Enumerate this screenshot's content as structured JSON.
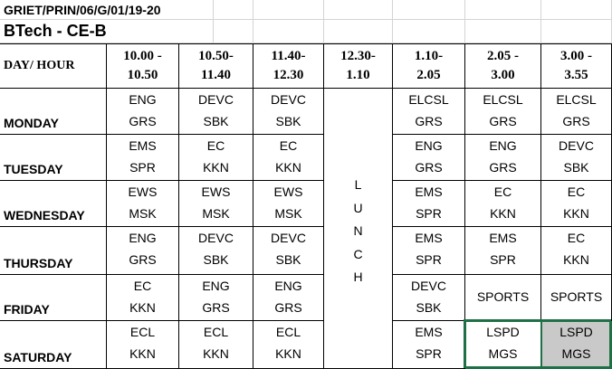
{
  "sheet": {
    "code": "GRIET/PRIN/06/G/01/19-20",
    "class_title": "BTech -  CE-B",
    "header_day": "DAY/ HOUR",
    "periods": [
      {
        "l1": "10.00 -",
        "l2": "10.50"
      },
      {
        "l1": "10.50-",
        "l2": "11.40"
      },
      {
        "l1": "11.40-",
        "l2": "12.30"
      },
      {
        "l1": "12.30-",
        "l2": "1.10"
      },
      {
        "l1": "1.10-",
        "l2": "2.05"
      },
      {
        "l1": "2.05  -",
        "l2": "3.00"
      },
      {
        "l1": "3.00  -",
        "l2": "3.55"
      }
    ],
    "lunch": [
      "L",
      "U",
      "N",
      "C",
      "H"
    ],
    "days": [
      {
        "name": "MONDAY",
        "slots": [
          {
            "a": "ENG",
            "b": "GRS"
          },
          {
            "a": "DEVC",
            "b": "SBK"
          },
          {
            "a": "DEVC",
            "b": "SBK"
          },
          {
            "a": "ELCSL",
            "b": "GRS"
          },
          {
            "a": "ELCSL",
            "b": "GRS"
          },
          {
            "a": "ELCSL",
            "b": "GRS"
          }
        ]
      },
      {
        "name": "TUESDAY",
        "slots": [
          {
            "a": "EMS",
            "b": "SPR"
          },
          {
            "a": "EC",
            "b": "KKN"
          },
          {
            "a": "EC",
            "b": "KKN"
          },
          {
            "a": "ENG",
            "b": "GRS"
          },
          {
            "a": "ENG",
            "b": "GRS"
          },
          {
            "a": "DEVC",
            "b": "SBK"
          }
        ]
      },
      {
        "name": "WEDNESDAY",
        "slots": [
          {
            "a": "EWS",
            "b": "MSK"
          },
          {
            "a": "EWS",
            "b": "MSK"
          },
          {
            "a": "EWS",
            "b": "MSK"
          },
          {
            "a": "EMS",
            "b": "SPR"
          },
          {
            "a": "EC",
            "b": "KKN"
          },
          {
            "a": "EC",
            "b": "KKN"
          }
        ]
      },
      {
        "name": "THURSDAY",
        "slots": [
          {
            "a": "ENG",
            "b": "GRS"
          },
          {
            "a": "DEVC",
            "b": "SBK"
          },
          {
            "a": "DEVC",
            "b": "SBK"
          },
          {
            "a": "EMS",
            "b": "SPR"
          },
          {
            "a": "EMS",
            "b": "SPR"
          },
          {
            "a": "EC",
            "b": "KKN"
          }
        ]
      },
      {
        "name": "FRIDAY",
        "slots": [
          {
            "a": "EC",
            "b": "KKN"
          },
          {
            "a": "ENG",
            "b": "GRS"
          },
          {
            "a": "ENG",
            "b": "GRS"
          },
          {
            "a": "DEVC",
            "b": "SBK"
          },
          {
            "single": "SPORTS"
          },
          {
            "single": "SPORTS"
          }
        ]
      },
      {
        "name": "SATURDAY",
        "slots": [
          {
            "a": "ECL",
            "b": "KKN"
          },
          {
            "a": "ECL",
            "b": "KKN"
          },
          {
            "a": "ECL",
            "b": "KKN"
          },
          {
            "a": "EMS",
            "b": "SPR"
          },
          {
            "a": "LSPD",
            "b": "MGS"
          },
          {
            "a": "LSPD",
            "b": "MGS"
          }
        ]
      }
    ],
    "colors": {
      "selection": "#1e7145",
      "grey_fill": "#c9c9c9",
      "gridline": "#d4d4d4"
    }
  }
}
